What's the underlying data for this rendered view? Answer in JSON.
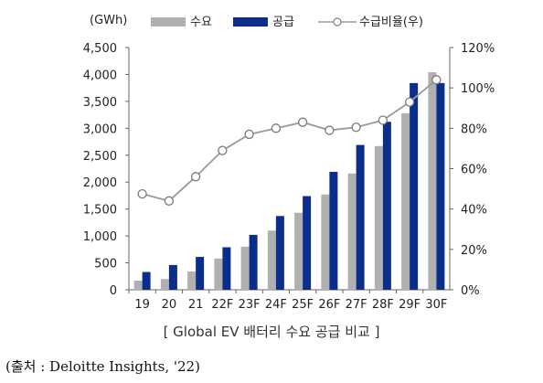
{
  "chart_data": {
    "type": "bar",
    "unit_label": "(GWh)",
    "categories": [
      "19",
      "20",
      "21",
      "22F",
      "23F",
      "24F",
      "25F",
      "26F",
      "27F",
      "28F",
      "29F",
      "30F"
    ],
    "series": [
      {
        "name": "수요",
        "type": "bar",
        "axis": "left",
        "color": "#b0b0b0",
        "values": [
          170,
          200,
          340,
          580,
          800,
          1100,
          1430,
          1770,
          2160,
          2670,
          3280,
          4040
        ]
      },
      {
        "name": "공급",
        "type": "bar",
        "axis": "left",
        "color": "#0b2d8c",
        "values": [
          330,
          460,
          610,
          790,
          1020,
          1370,
          1740,
          2190,
          2690,
          3120,
          3840,
          3840
        ]
      },
      {
        "name": "수급비율(우)",
        "type": "line",
        "axis": "right",
        "color": "#9a9a9a",
        "values": [
          47.5,
          44,
          56,
          69,
          77,
          80,
          83,
          79,
          80.5,
          84,
          93,
          104
        ]
      }
    ],
    "y_left": {
      "min": 0,
      "max": 4500,
      "step": 500,
      "tick_labels": [
        "0",
        "500",
        "1,000",
        "1,500",
        "2,000",
        "2,500",
        "3,000",
        "3,500",
        "4,000",
        "4,500"
      ]
    },
    "y_right": {
      "min": 0,
      "max": 120,
      "step": 20,
      "tick_labels": [
        "0%",
        "20%",
        "40%",
        "60%",
        "80%",
        "100%",
        "120%"
      ]
    },
    "grid": false,
    "legend_position": "top"
  },
  "caption": "[ Global EV 배터리 수요 공급 비교 ]",
  "source": "(출처 : Deloitte Insights, '22)"
}
